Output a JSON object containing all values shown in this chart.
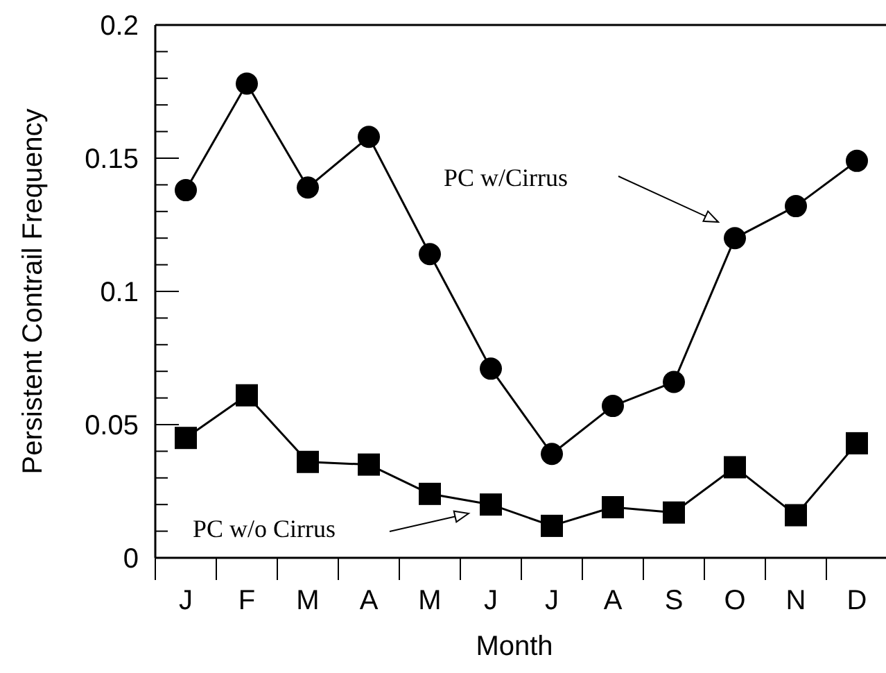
{
  "chart_data": {
    "type": "line",
    "xlabel": "Month",
    "ylabel": "Persistent Contrail Frequency",
    "categories": [
      "J",
      "F",
      "M",
      "A",
      "M",
      "J",
      "J",
      "A",
      "S",
      "O",
      "N",
      "D"
    ],
    "series": [
      {
        "name": "PC w/Cirrus",
        "color": "#000000",
        "marker": "circle",
        "values": [
          0.138,
          0.178,
          0.139,
          0.158,
          0.114,
          0.071,
          0.039,
          0.057,
          0.066,
          0.12,
          0.132,
          0.149
        ]
      },
      {
        "name": "PC w/o Cirrus",
        "color": "#000000",
        "marker": "square",
        "values": [
          0.045,
          0.061,
          0.036,
          0.035,
          0.024,
          0.02,
          0.012,
          0.019,
          0.017,
          0.034,
          0.016,
          0.043
        ]
      }
    ],
    "ylim": [
      0,
      0.2
    ],
    "yticks": [
      0,
      0.05,
      0.1,
      0.15,
      0.2
    ],
    "grid": false,
    "line_style": "solid"
  }
}
